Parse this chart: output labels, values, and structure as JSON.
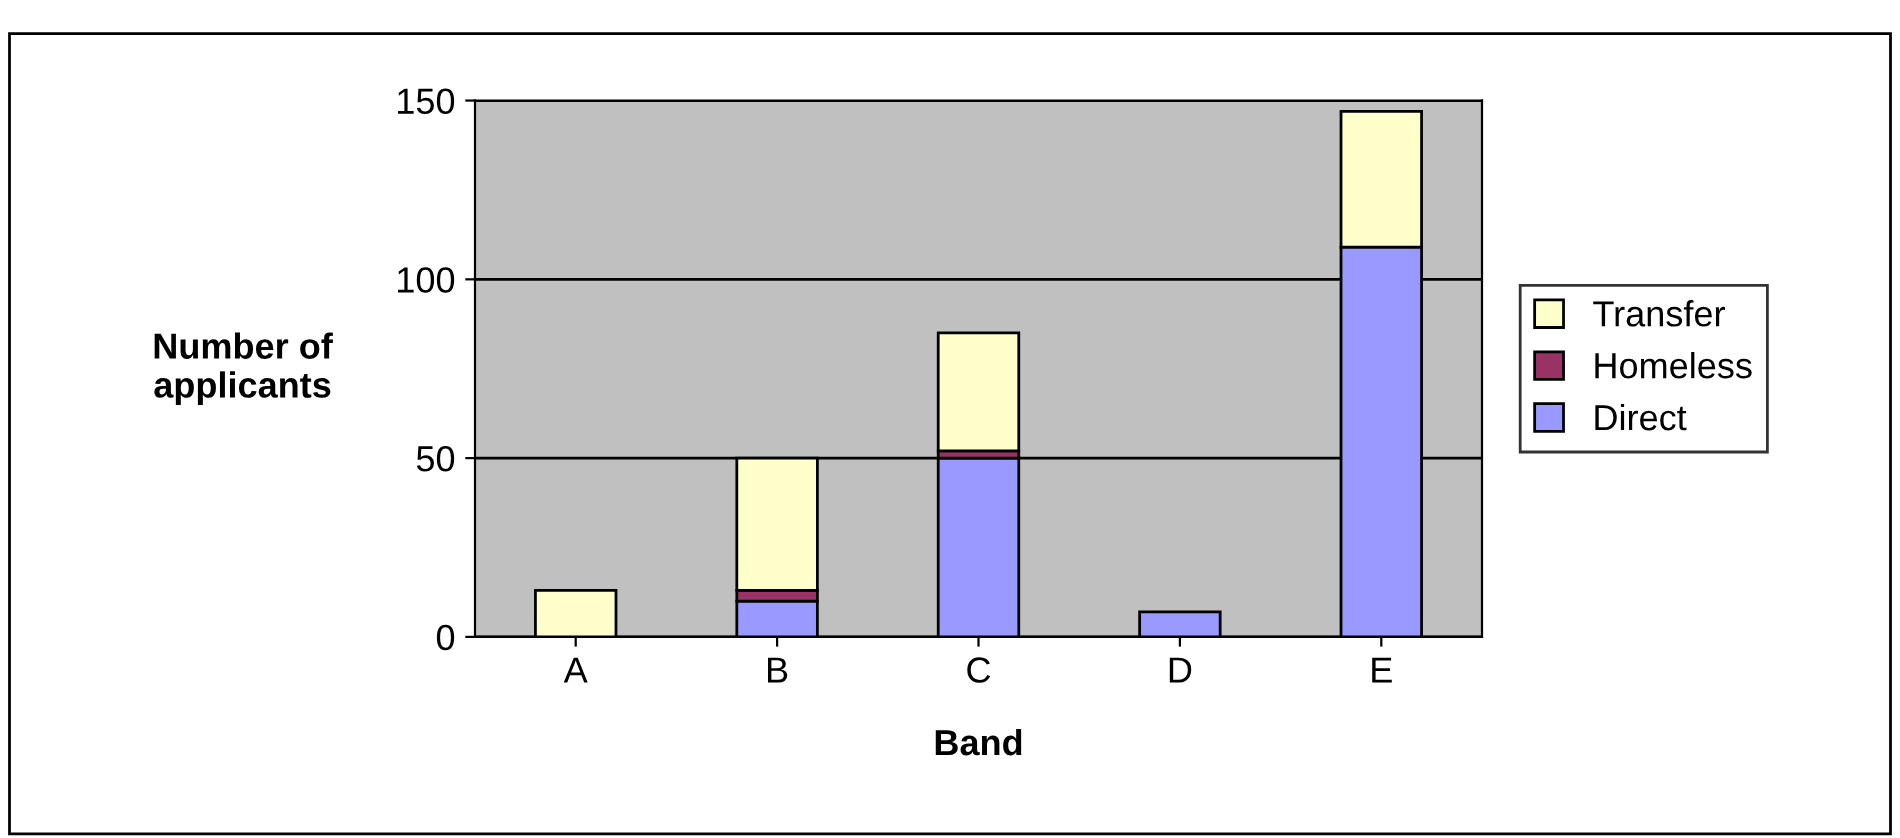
{
  "chart_data": {
    "type": "bar",
    "stacked": true,
    "xlabel": "Band",
    "ylabel": "Number of\napplicants",
    "categories": [
      "A",
      "B",
      "C",
      "D",
      "E"
    ],
    "series": [
      {
        "name": "Direct",
        "color": "#9999ff",
        "values": [
          0,
          10,
          50,
          7,
          109
        ]
      },
      {
        "name": "Homeless",
        "color": "#993366",
        "values": [
          0,
          3,
          2,
          0,
          0
        ]
      },
      {
        "name": "Transfer",
        "color": "#ffffcc",
        "values": [
          13,
          37,
          33,
          0,
          38
        ]
      }
    ],
    "ylim": [
      0,
      150
    ],
    "yticks": [
      0,
      50,
      100,
      150
    ],
    "grid": "y",
    "legend": "right"
  }
}
